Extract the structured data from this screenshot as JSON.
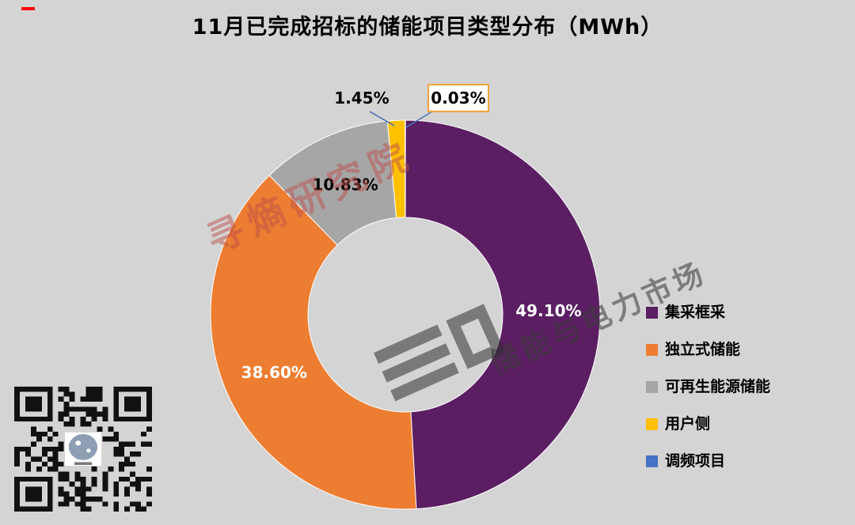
{
  "title": "11月已完成招标的储能项目类型分布（MWh）",
  "chart_data": {
    "type": "pie",
    "subtype": "donut",
    "title": "11月已完成招标的储能项目类型分布（MWh）",
    "unit": "MWh",
    "start_angle_deg": 0,
    "direction": "clockwise",
    "legend_position": "right",
    "series": [
      {
        "name": "集采框采",
        "value": 49.1,
        "label": "49.10%",
        "color": "#5B1E63",
        "label_color": "#FFFFFF",
        "label_placement": "inside"
      },
      {
        "name": "独立式储能",
        "value": 38.6,
        "label": "38.60%",
        "color": "#ED7D31",
        "label_color": "#FFFFFF",
        "label_placement": "inside"
      },
      {
        "name": "可再生能源储能",
        "value": 10.83,
        "label": "10.83%",
        "color": "#A6A6A6",
        "label_color": "#000000",
        "label_placement": "inside"
      },
      {
        "name": "用户侧",
        "value": 1.45,
        "label": "1.45%",
        "color": "#FFC000",
        "label_color": "#000000",
        "label_placement": "outside"
      },
      {
        "name": "调频项目",
        "value": 0.03,
        "label": "0.03%",
        "color": "#4472C4",
        "label_color": "#000000",
        "label_placement": "outside-boxed"
      }
    ]
  },
  "watermarks": {
    "primary": "寻熵研究院",
    "secondary": "储能与电力市场"
  },
  "colors": {
    "background": "#D4D4D4",
    "leader_line": "#4E74B8",
    "callout_border": "#F2A23C",
    "red_dash": "#FF0000",
    "qr_dark": "#111111"
  },
  "icons": {
    "qr-code": "css-grid-pattern",
    "watermark-logo": "css-bar-shapes"
  }
}
